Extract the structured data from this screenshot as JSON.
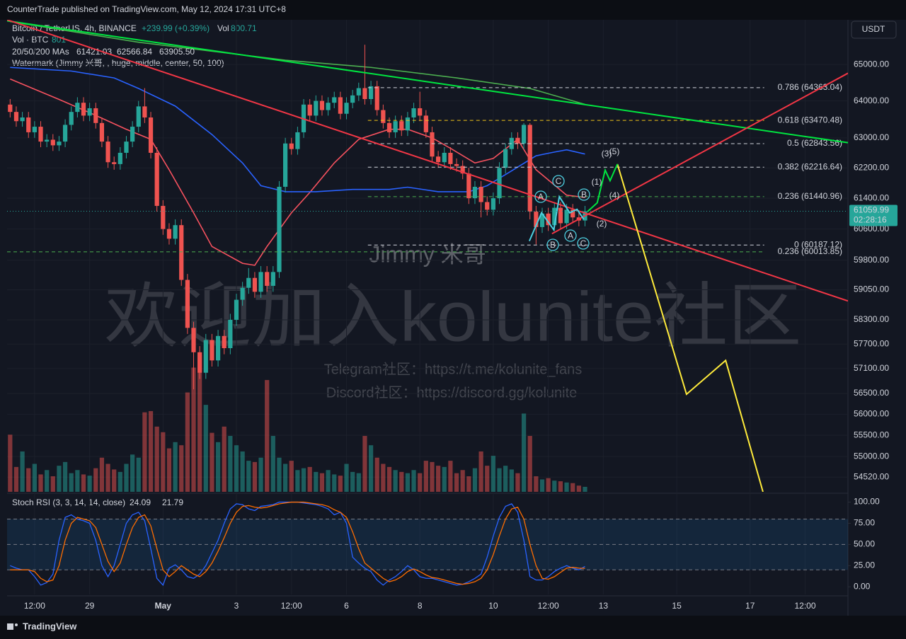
{
  "header": {
    "publisher": "CounterTrade published on TradingView.com, May 12, 2024 17:31 UTC+8",
    "footer": "TradingView"
  },
  "watermark": {
    "name": "Jimmy 米哥",
    "big": "欢迎加入kolunite社区",
    "telegram": "Telegram社区：https://t.me/kolunite_fans",
    "discord": "Discord社区：https://discord.gg/kolunite",
    "legend": "Watermark (Jimmy 米哥, , huge, middle, center, 50, 100)"
  },
  "chart_data": [
    {
      "type": "candlestick",
      "title": "Bitcoin / TetherUS, 4h, BINANCE",
      "change_label": "+239.99 (+0.39%)",
      "vol_label": "Vol",
      "vol_value_label": "800.71",
      "currency": "USDT",
      "up_color": "#26a69a",
      "down_color": "#ef5350",
      "log": true,
      "grid": true,
      "xlim": [
        -0.5,
        137
      ],
      "xticks": [
        {
          "value": 4,
          "label": "12:00"
        },
        {
          "value": 13,
          "label": "29"
        },
        {
          "value": 25,
          "label": "May"
        },
        {
          "value": 37,
          "label": "3"
        },
        {
          "value": 46,
          "label": "12:00"
        },
        {
          "value": 55,
          "label": "6"
        },
        {
          "value": 67,
          "label": "8"
        },
        {
          "value": 79,
          "label": "10"
        },
        {
          "value": 88,
          "label": "12:00"
        },
        {
          "value": 97,
          "label": "13"
        },
        {
          "value": 109,
          "label": "15"
        },
        {
          "value": 121,
          "label": "17"
        },
        {
          "value": 130,
          "label": "12:00"
        }
      ],
      "ylim": [
        54180,
        66250
      ],
      "yticks": [
        {
          "value": 65000,
          "label": "65000.00"
        },
        {
          "value": 64000,
          "label": "64000.00"
        },
        {
          "value": 63000,
          "label": "63000.00"
        },
        {
          "value": 62200,
          "label": "62200.00"
        },
        {
          "value": 61400,
          "label": "61400.00"
        },
        {
          "value": 60600,
          "label": "60600.00"
        },
        {
          "value": 59800,
          "label": "59800.00"
        },
        {
          "value": 59050,
          "label": "59050.00"
        },
        {
          "value": 58300,
          "label": "58300.00"
        },
        {
          "value": 57700,
          "label": "57700.00"
        },
        {
          "value": 57100,
          "label": "57100.00"
        },
        {
          "value": 56500,
          "label": "56500.00"
        },
        {
          "value": 56000,
          "label": "56000.00"
        },
        {
          "value": 55500,
          "label": "55500.00"
        },
        {
          "value": 55000,
          "label": "55000.00"
        },
        {
          "value": 54520,
          "label": "54520.00"
        }
      ],
      "open": [
        63900,
        63700,
        63450,
        63550,
        63150,
        63300,
        62900,
        62950,
        62800,
        62900,
        63350,
        63700,
        63950,
        63600,
        63800,
        63400,
        62900,
        62350,
        62300,
        62600,
        62900,
        63300,
        63850,
        63550,
        62600,
        61200,
        60600,
        60350,
        60700,
        59300,
        58100,
        57500,
        57000,
        57800,
        57300,
        57900,
        57600,
        58300,
        58800,
        59100,
        59350,
        59000,
        59500,
        59150,
        59500,
        61700,
        62850,
        62700,
        63150,
        63900,
        63600,
        64000,
        63750,
        63950,
        64100,
        63650,
        63950,
        64150,
        64350,
        64050,
        64400,
        63750,
        63400,
        63150,
        63450,
        63200,
        63550,
        63800,
        63600,
        63150,
        62500,
        62350,
        62600,
        62300,
        62250,
        62050,
        61400,
        61700,
        61300,
        61100,
        61400,
        62200,
        62700,
        63000,
        62850,
        63350,
        61050,
        60650,
        61000,
        60700,
        61150,
        60750,
        61100,
        60900,
        60820
      ],
      "high": [
        64050,
        63850,
        63700,
        63700,
        63450,
        63450,
        63100,
        63100,
        63050,
        63500,
        63850,
        64100,
        64100,
        63950,
        63950,
        63550,
        63050,
        62500,
        62750,
        63050,
        63450,
        64000,
        64350,
        63700,
        62750,
        61350,
        60750,
        60850,
        60850,
        59450,
        58250,
        57650,
        57950,
        57950,
        58050,
        58050,
        58450,
        58950,
        59250,
        59600,
        59500,
        59650,
        59650,
        59650,
        61850,
        63000,
        63000,
        63300,
        64050,
        64050,
        64150,
        64150,
        64100,
        64250,
        64250,
        64100,
        64300,
        64500,
        65550,
        64550,
        64550,
        63900,
        63550,
        63600,
        63600,
        63700,
        63950,
        64250,
        63750,
        63300,
        62650,
        62750,
        62750,
        62450,
        62400,
        62200,
        61850,
        61850,
        61450,
        61550,
        62350,
        62850,
        63150,
        63150,
        63400,
        63400,
        61200,
        61150,
        61150,
        61300,
        61300,
        61250,
        61250,
        61050,
        61200
      ],
      "low": [
        63550,
        63300,
        63300,
        63000,
        63000,
        62750,
        62750,
        62650,
        62650,
        62750,
        63200,
        63550,
        63450,
        63450,
        63250,
        62750,
        62200,
        62150,
        62150,
        62450,
        62750,
        63150,
        63400,
        62450,
        61050,
        60450,
        60200,
        60200,
        59150,
        57950,
        56600,
        56850,
        56850,
        57150,
        57150,
        57450,
        57450,
        58150,
        58650,
        58950,
        58850,
        58850,
        59000,
        59000,
        59350,
        61550,
        62550,
        62550,
        63000,
        63450,
        63450,
        63600,
        63600,
        63800,
        63500,
        63500,
        63800,
        64000,
        63900,
        63900,
        63600,
        63250,
        63000,
        63000,
        63050,
        63050,
        63400,
        63450,
        63000,
        62350,
        62200,
        62200,
        62150,
        62100,
        61900,
        61250,
        61250,
        60900,
        60950,
        60950,
        61250,
        62050,
        62550,
        62700,
        62700,
        60850,
        60200,
        60500,
        60550,
        60550,
        60600,
        60600,
        60750,
        60670,
        60670
      ],
      "close": [
        63700,
        63450,
        63550,
        63150,
        63300,
        62900,
        62950,
        62800,
        62900,
        63350,
        63700,
        63950,
        63600,
        63800,
        63400,
        62900,
        62350,
        62300,
        62600,
        62900,
        63300,
        63850,
        63550,
        62600,
        61200,
        60600,
        60350,
        60700,
        59300,
        58100,
        57500,
        57000,
        57800,
        57300,
        57900,
        57600,
        58300,
        58800,
        59100,
        59350,
        59000,
        59500,
        59150,
        59500,
        61700,
        62850,
        62700,
        63150,
        63900,
        63600,
        64000,
        63750,
        63950,
        64100,
        63650,
        63950,
        64150,
        64350,
        64050,
        64400,
        63750,
        63400,
        63150,
        63450,
        63200,
        63550,
        63800,
        63600,
        63150,
        62500,
        62350,
        62600,
        62300,
        62250,
        62050,
        61400,
        61700,
        61300,
        61100,
        61400,
        62200,
        62700,
        63000,
        62850,
        63350,
        61050,
        60650,
        61000,
        60700,
        61150,
        60750,
        61100,
        60900,
        60820,
        61059.99
      ],
      "volume_label": "Vol · BTC",
      "volume_value_label": "801",
      "volume_ylim": [
        0,
        76000
      ],
      "volume": [
        9200,
        4000,
        6500,
        3800,
        4500,
        2800,
        3500,
        2500,
        4200,
        4800,
        3000,
        3500,
        2800,
        2600,
        3800,
        5500,
        4500,
        3600,
        3200,
        4500,
        6000,
        5500,
        12800,
        13000,
        10500,
        9600,
        7000,
        8000,
        7500,
        16000,
        20000,
        22000,
        14000,
        9500,
        8000,
        10500,
        9000,
        7500,
        6500,
        5000,
        4800,
        5500,
        18000,
        9000,
        5500,
        4500,
        5000,
        3500,
        3800,
        4000,
        3200,
        3000,
        3500,
        2800,
        2600,
        4500,
        3200,
        3000,
        9000,
        7500,
        5500,
        4500,
        4000,
        3500,
        3200,
        3000,
        3500,
        3000,
        5000,
        4800,
        4200,
        4000,
        5000,
        3000,
        3500,
        2500,
        3800,
        6500,
        4200,
        5800,
        3800,
        4200,
        3600,
        3000,
        12600,
        9000,
        2500,
        2000,
        2200,
        1800,
        1700,
        1500,
        1400,
        1000,
        801
      ],
      "ma_label": "20/50/200 MAs",
      "moving_averages": [
        {
          "color": "#f7525f",
          "value_label": "61421.03",
          "x": [
            0,
            8,
            13,
            19,
            23,
            26,
            30,
            33,
            38,
            40,
            42,
            46,
            49,
            53,
            57,
            62,
            65,
            69,
            72,
            76,
            79,
            83,
            86,
            91,
            94
          ],
          "values": [
            64600,
            64040,
            63680,
            63230,
            62960,
            62150,
            61020,
            60150,
            59720,
            59670,
            60150,
            61020,
            61550,
            62330,
            62960,
            63230,
            63230,
            63000,
            62720,
            62330,
            62450,
            62960,
            62150,
            61480,
            61421.03
          ]
        },
        {
          "color": "#2962ff",
          "value_label": "62566.84",
          "x": [
            0,
            10,
            17,
            21,
            27,
            33,
            38,
            41,
            45,
            50,
            56,
            62,
            65,
            70,
            75,
            78,
            82,
            86,
            89,
            91,
            94
          ],
          "values": [
            64920,
            64820,
            64630,
            64340,
            63860,
            63090,
            62330,
            61730,
            61570,
            61570,
            61630,
            61630,
            61690,
            61570,
            61570,
            61730,
            62120,
            62520,
            62620,
            62680,
            62566.84
          ]
        },
        {
          "color": "#4caf50",
          "value_label": "63905.50",
          "x": [
            0,
            21,
            45,
            59,
            73,
            85,
            94
          ],
          "values": [
            66200,
            65620,
            65120,
            64920,
            64630,
            64340,
            63905.5
          ]
        }
      ],
      "fib_levels": [
        {
          "label": "0.786 (64363.04)",
          "price": 64363.04,
          "color": "#d1d4dc",
          "x": [
            58.5,
            123.3
          ]
        },
        {
          "label": "0.618 (63470.48)",
          "price": 63470.48,
          "color": "#f0c419",
          "x": [
            58.5,
            123.3
          ]
        },
        {
          "label": "0.5 (62843.56)",
          "price": 62843.56,
          "color": "#d1d4dc",
          "x": [
            58.5,
            123.3
          ]
        },
        {
          "label": "0.382 (62216.64)",
          "price": 62216.64,
          "color": "#d1d4dc",
          "x": [
            58.5,
            123.3
          ]
        },
        {
          "label": "0.236 (61440.96)",
          "price": 61440.96,
          "color": "#4caf50",
          "x": [
            58.5,
            123.3
          ]
        },
        {
          "label": "0 (60187.12)",
          "price": 60187.12,
          "color": "#d1d4dc",
          "x": [
            58.5,
            123.3
          ]
        },
        {
          "label": "0.236 (60013.85)",
          "price": 60013.85,
          "color": "#4caf50",
          "x": [
            -0.5,
            123.3
          ]
        }
      ],
      "drawings": [
        {
          "color": "#00e640",
          "x": [
            -0.5,
            137
          ],
          "values": [
            66220,
            62870
          ]
        },
        {
          "color": "#f23645",
          "x": [
            -0.5,
            137
          ],
          "values": [
            66250,
            58770
          ]
        },
        {
          "color": "#f23645",
          "x": [
            88.6,
            137
          ],
          "values": [
            60480,
            64760
          ]
        },
        {
          "color": "#ffeb3b",
          "x": [
            99.3,
            110.6,
            117,
            123.1
          ],
          "values": [
            62300,
            56480,
            57300,
            54180
          ]
        },
        {
          "color": "#00e640",
          "x": [
            94.4,
            96,
            97.3,
            98.1,
            99.3
          ],
          "values": [
            61050,
            61280,
            62140,
            61860,
            62300
          ]
        },
        {
          "color": "#4dd0e1",
          "x": [
            84.9,
            86.9,
            88.9,
            89.8,
            91.5,
            92.7,
            93.8
          ],
          "values": [
            60290,
            61020,
            60580,
            61440,
            61020,
            61110,
            60850
          ]
        }
      ],
      "wave_labels": [
        "(1)",
        "(2)",
        "(3)",
        "(4)",
        "(5)"
      ],
      "abc_labels": [
        "C",
        "A",
        "B",
        "B",
        "A",
        "C"
      ],
      "last_price": 61059.99,
      "countdown": "02:28:16"
    },
    {
      "type": "line",
      "title": "Stoch RSI (3, 3, 14, 14, close)",
      "xlim": [
        -0.5,
        137
      ],
      "ylim": [
        -9,
        108
      ],
      "yticks": [
        {
          "value": 100,
          "label": "100.00"
        },
        {
          "value": 75,
          "label": "75.00"
        },
        {
          "value": 50,
          "label": "50.00"
        },
        {
          "value": 25,
          "label": "25.00"
        },
        {
          "value": 0,
          "label": "0.00"
        }
      ],
      "band": [
        20,
        80
      ],
      "hlines": [
        80,
        50,
        20
      ],
      "series": [
        {
          "color": "#2962ff",
          "value_label": "24.09",
          "values": [
            25,
            22,
            20,
            20,
            12,
            2,
            5,
            15,
            55,
            82,
            85,
            80,
            78,
            75,
            55,
            25,
            12,
            25,
            50,
            75,
            85,
            88,
            78,
            45,
            10,
            2,
            22,
            26,
            20,
            12,
            10,
            15,
            25,
            40,
            55,
            75,
            92,
            98,
            97,
            92,
            90,
            95,
            96,
            97,
            100,
            100,
            100,
            100,
            99,
            98,
            97,
            95,
            92,
            85,
            88,
            75,
            35,
            28,
            22,
            18,
            8,
            2,
            8,
            12,
            18,
            25,
            20,
            12,
            10,
            10,
            8,
            6,
            4,
            2,
            3,
            6,
            10,
            15,
            35,
            60,
            82,
            95,
            98,
            88,
            55,
            12,
            8,
            8,
            12,
            18,
            22,
            25,
            22,
            20,
            24.09
          ]
        },
        {
          "color": "#ff6d00",
          "value_label": "21.79",
          "values": [
            20,
            20,
            20,
            20,
            18,
            10,
            6,
            8,
            25,
            55,
            75,
            82,
            80,
            78,
            70,
            50,
            30,
            18,
            28,
            50,
            70,
            82,
            85,
            72,
            45,
            20,
            12,
            18,
            25,
            20,
            15,
            12,
            18,
            28,
            42,
            58,
            75,
            88,
            95,
            96,
            94,
            93,
            94,
            96,
            98,
            99,
            100,
            100,
            100,
            99,
            98,
            97,
            95,
            91,
            88,
            82,
            65,
            45,
            28,
            22,
            16,
            10,
            6,
            8,
            12,
            18,
            21,
            18,
            14,
            11,
            10,
            8,
            6,
            4,
            3,
            4,
            6,
            10,
            20,
            38,
            60,
            80,
            92,
            94,
            80,
            50,
            25,
            10,
            9,
            12,
            17,
            22,
            23,
            22,
            21.79
          ]
        }
      ]
    }
  ]
}
